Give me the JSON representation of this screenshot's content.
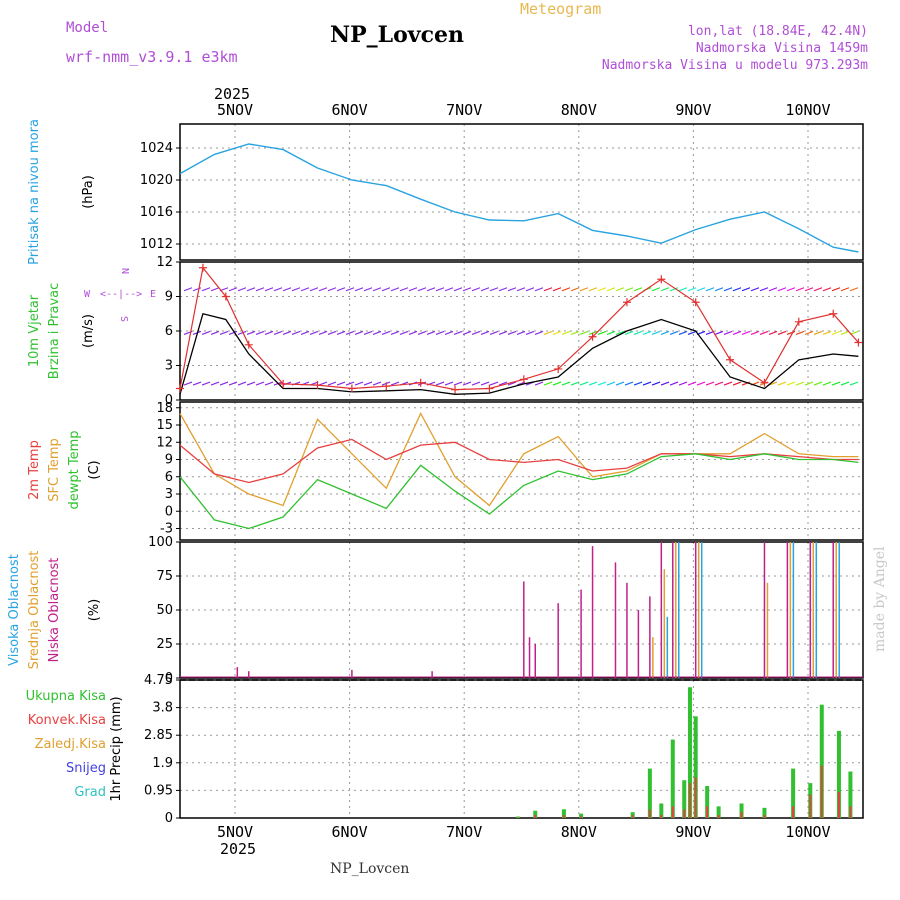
{
  "header": {
    "model_label": "Model",
    "model_name": "wrf-nmm_v3.9.1 e3km",
    "chart_type": "Meteogram",
    "station": "NP_Lovcen",
    "lonlat": "lon,lat (18.84E, 42.4N)",
    "altitude": "Nadmorska Visina 1459m",
    "model_altitude": "Nadmorska Visina u modelu 973.293m",
    "footer_station": "NP_Lovcen",
    "credit": "made by Angel"
  },
  "colors": {
    "pressure": "#29a3e0",
    "wind_speed": "#000000",
    "wind_gust": "#e03030",
    "temp2m": "#e84040",
    "sfc_temp": "#e0a030",
    "dewpt": "#30c030",
    "cloud_high": "#29a3e0",
    "cloud_mid": "#e0a030",
    "cloud_low": "#c0208a",
    "precip_total": "#30c030",
    "precip_conv": "#e84040",
    "purple": "#b04fd6"
  },
  "chart_data": [
    {
      "type": "line",
      "panel": "pressure",
      "title": "Pritisak na nivou mora",
      "ylabel": "(hPa)",
      "ylim": [
        1010,
        1027
      ],
      "yticks": [
        "1024",
        "1020",
        "1016",
        "1012"
      ],
      "x_day_labels": [
        "5NOV",
        "6NOV",
        "7NOV",
        "8NOV",
        "9NOV",
        "10NOV"
      ],
      "year_label": "2025",
      "x": [
        0,
        0.3,
        0.6,
        0.9,
        1.2,
        1.5,
        1.8,
        2.1,
        2.4,
        2.7,
        3.0,
        3.3,
        3.6,
        3.9,
        4.2,
        4.5,
        4.8,
        5.1,
        5.4,
        5.7,
        5.92
      ],
      "series": [
        {
          "name": "Pritisak",
          "values": [
            1020.8,
            1023.2,
            1024.5,
            1023.8,
            1021.5,
            1020.0,
            1019.3,
            1017.6,
            1016.0,
            1015.0,
            1014.9,
            1015.8,
            1013.7,
            1013.0,
            1012.1,
            1013.8,
            1015.1,
            1016.0,
            1013.9,
            1011.6,
            1011.0
          ]
        }
      ]
    },
    {
      "type": "line",
      "panel": "wind",
      "title": "10m Vjetar Brzina i Pravac",
      "ylabel": "(m/s)",
      "ylim": [
        0,
        12
      ],
      "yticks": [
        "12",
        "9",
        "6",
        "3",
        "0"
      ],
      "compass_labels": {
        "n": "N",
        "e": "E",
        "w": "W",
        "s": "S",
        "axis": "<--|-->"
      },
      "x": [
        0,
        0.2,
        0.4,
        0.6,
        0.9,
        1.2,
        1.5,
        1.8,
        2.1,
        2.4,
        2.7,
        3.0,
        3.3,
        3.6,
        3.9,
        4.2,
        4.5,
        4.8,
        5.1,
        5.4,
        5.7,
        5.92
      ],
      "series": [
        {
          "name": "Brzina",
          "values": [
            0.5,
            7.5,
            7.0,
            4.0,
            1.0,
            1.0,
            0.7,
            0.8,
            0.9,
            0.5,
            0.6,
            1.4,
            2.0,
            4.5,
            6.0,
            7.0,
            6.0,
            2.0,
            1.0,
            3.5,
            4.0,
            3.8
          ]
        },
        {
          "name": "Udari",
          "values": [
            1.0,
            11.5,
            9.0,
            4.8,
            1.4,
            1.3,
            1.0,
            1.2,
            1.5,
            0.9,
            1.0,
            1.8,
            2.7,
            5.5,
            8.5,
            10.5,
            8.5,
            3.5,
            1.5,
            6.8,
            7.5,
            5.0
          ]
        }
      ]
    },
    {
      "type": "line",
      "panel": "temperature",
      "title": "2m Temp / SFC Temp / dewpt Temp",
      "ylabel": "(C)",
      "ylim": [
        -5,
        19
      ],
      "yticks": [
        "18",
        "15",
        "12",
        "9",
        "6",
        "3",
        "0",
        "-3"
      ],
      "x": [
        0,
        0.3,
        0.6,
        0.9,
        1.2,
        1.5,
        1.8,
        2.1,
        2.4,
        2.7,
        3.0,
        3.3,
        3.6,
        3.9,
        4.2,
        4.5,
        4.8,
        5.1,
        5.4,
        5.7,
        5.92
      ],
      "series": [
        {
          "name": "2m Temp",
          "values": [
            11.5,
            6.5,
            5.0,
            6.5,
            11.0,
            12.5,
            9.0,
            11.5,
            12.0,
            9.0,
            8.5,
            9.0,
            7.0,
            7.5,
            10.0,
            10.0,
            9.5,
            10.0,
            9.5,
            9.0,
            9.0
          ]
        },
        {
          "name": "SFC Temp",
          "values": [
            17.0,
            6.5,
            3.0,
            1.0,
            16.0,
            10.0,
            4.0,
            17.0,
            6.0,
            1.0,
            10.0,
            13.0,
            6.0,
            7.0,
            10.0,
            10.0,
            10.0,
            13.5,
            10.0,
            9.5,
            9.5
          ]
        },
        {
          "name": "dewpt Temp",
          "values": [
            6.0,
            -1.5,
            -3.0,
            -1.0,
            5.5,
            3.0,
            0.5,
            8.0,
            3.5,
            -0.5,
            4.5,
            7.0,
            5.5,
            6.5,
            9.5,
            10.0,
            9.0,
            10.0,
            9.0,
            9.0,
            8.5
          ]
        }
      ]
    },
    {
      "type": "bar",
      "panel": "clouds",
      "title": "Visoka Oblacnost / Srednja Oblacnost / Niska Oblacnost",
      "ylabel": "(%)",
      "ylim": [
        0,
        100
      ],
      "yticks": [
        "100",
        "75",
        "50",
        "25",
        "0"
      ],
      "x": [
        0.05,
        0.5,
        0.6,
        1.3,
        1.5,
        2.2,
        3.0,
        3.05,
        3.1,
        3.3,
        3.5,
        3.6,
        3.8,
        3.9,
        4.0,
        4.1,
        4.2,
        4.3,
        4.5,
        5.1,
        5.3,
        5.5,
        5.7
      ],
      "series": [
        {
          "name": "Niska",
          "values": [
            0,
            8,
            5,
            0,
            6,
            5,
            71,
            30,
            25,
            55,
            65,
            97,
            85,
            70,
            50,
            60,
            100,
            100,
            100,
            100,
            100,
            100,
            100
          ]
        },
        {
          "name": "Srednja",
          "values": [
            0,
            0,
            0,
            0,
            0,
            0,
            0,
            0,
            0,
            0,
            0,
            0,
            0,
            0,
            0,
            30,
            80,
            100,
            100,
            70,
            100,
            100,
            100
          ]
        },
        {
          "name": "Visoka",
          "values": [
            0,
            0,
            0,
            0,
            0,
            0,
            0,
            0,
            0,
            0,
            0,
            0,
            0,
            0,
            0,
            0,
            45,
            100,
            100,
            0,
            100,
            100,
            100
          ]
        }
      ]
    },
    {
      "type": "bar",
      "panel": "precip",
      "title": "Ukupna Kisa / Konvek.Kisa / Zaledj.Kisa / Snijeg / Grad",
      "ylabel": "1hr Precip (mm)",
      "ylim": [
        0,
        4.75
      ],
      "yticks": [
        "4.75",
        "3.8",
        "2.85",
        "1.9",
        "0.95",
        "0"
      ],
      "legend": [
        "Ukupna Kisa",
        "Konvek.Kisa",
        "Zaledj.Kisa",
        "Snijeg",
        "Grad"
      ],
      "x": [
        2.95,
        3.1,
        3.35,
        3.5,
        3.95,
        4.1,
        4.2,
        4.3,
        4.4,
        4.45,
        4.5,
        4.6,
        4.7,
        4.9,
        5.1,
        5.35,
        5.5,
        5.6,
        5.75,
        5.85
      ],
      "series": [
        {
          "name": "Ukupna Kisa",
          "values": [
            0.05,
            0.25,
            0.3,
            0.15,
            0.2,
            1.7,
            0.5,
            2.7,
            1.3,
            4.5,
            3.5,
            1.1,
            0.4,
            0.5,
            0.35,
            1.7,
            1.2,
            3.9,
            3.0,
            1.6
          ]
        },
        {
          "name": "Konvek.Kisa",
          "values": [
            0.02,
            0.1,
            0.1,
            0.05,
            0.1,
            0.3,
            0.1,
            0.4,
            0.3,
            1.2,
            1.4,
            0.4,
            0.1,
            0.2,
            0.1,
            0.4,
            0.8,
            1.8,
            0.9,
            0.4
          ]
        }
      ]
    }
  ]
}
